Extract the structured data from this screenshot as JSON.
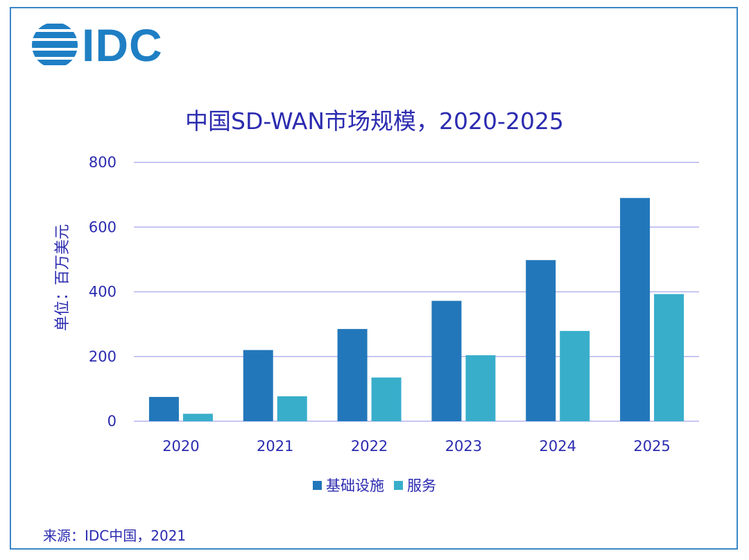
{
  "logo": {
    "text": "IDC"
  },
  "source": "来源：IDC中国，2021",
  "colors": {
    "infra": "#2277ba",
    "service": "#38aecb",
    "grid": "#b3b3ee",
    "text": "#2b2bb0",
    "frame": "#3a86c8"
  },
  "chart_data": {
    "type": "bar",
    "title": "中国SD-WAN市场规模，2020-2025",
    "xlabel": "",
    "ylabel": "单位：百万美元",
    "ylim": [
      0,
      800
    ],
    "yticks": [
      "0",
      "200",
      "400",
      "600",
      "800"
    ],
    "categories": [
      "2020",
      "2021",
      "2022",
      "2023",
      "2024",
      "2025"
    ],
    "series": [
      {
        "name": "基础设施",
        "values": [
          75,
          220,
          285,
          372,
          498,
          690
        ]
      },
      {
        "name": "服务",
        "values": [
          23,
          77,
          135,
          204,
          279,
          393
        ]
      }
    ],
    "legend": "bottom",
    "grid": true
  }
}
